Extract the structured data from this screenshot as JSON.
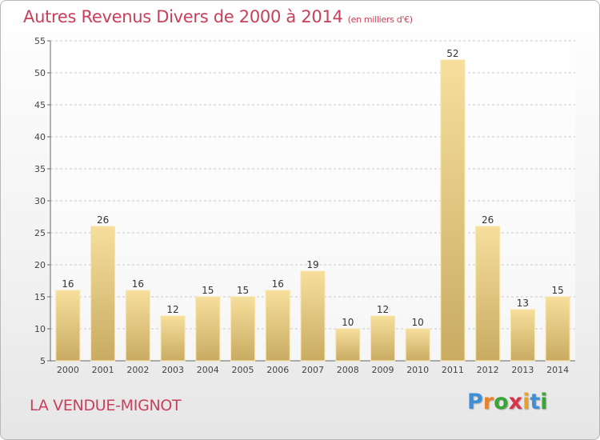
{
  "chart_data": {
    "type": "bar",
    "title": "Autres Revenus Divers de 2000 à 2014",
    "unit_note": "(en milliers d'€)",
    "categories": [
      "2000",
      "2001",
      "2002",
      "2003",
      "2004",
      "2005",
      "2006",
      "2007",
      "2008",
      "2009",
      "2010",
      "2011",
      "2012",
      "2013",
      "2014"
    ],
    "values": [
      16,
      26,
      16,
      12,
      15,
      15,
      16,
      19,
      10,
      12,
      10,
      52,
      26,
      13,
      15
    ],
    "ylim": [
      5,
      55
    ],
    "yticks": [
      5,
      10,
      15,
      20,
      25,
      30,
      35,
      40,
      45,
      50,
      55
    ],
    "grid": true,
    "bar_color": "#e8cf85"
  },
  "footer": {
    "town": "LA VENDUE-MIGNOT",
    "logo": [
      "P",
      "r",
      "o",
      "x",
      "i",
      "t",
      "i"
    ],
    "logo_colors": [
      "#3f8fd6",
      "#e8832a",
      "#3aa537",
      "#d8334a",
      "#e8a22a",
      "#3f8fd6",
      "#3aa537"
    ]
  }
}
